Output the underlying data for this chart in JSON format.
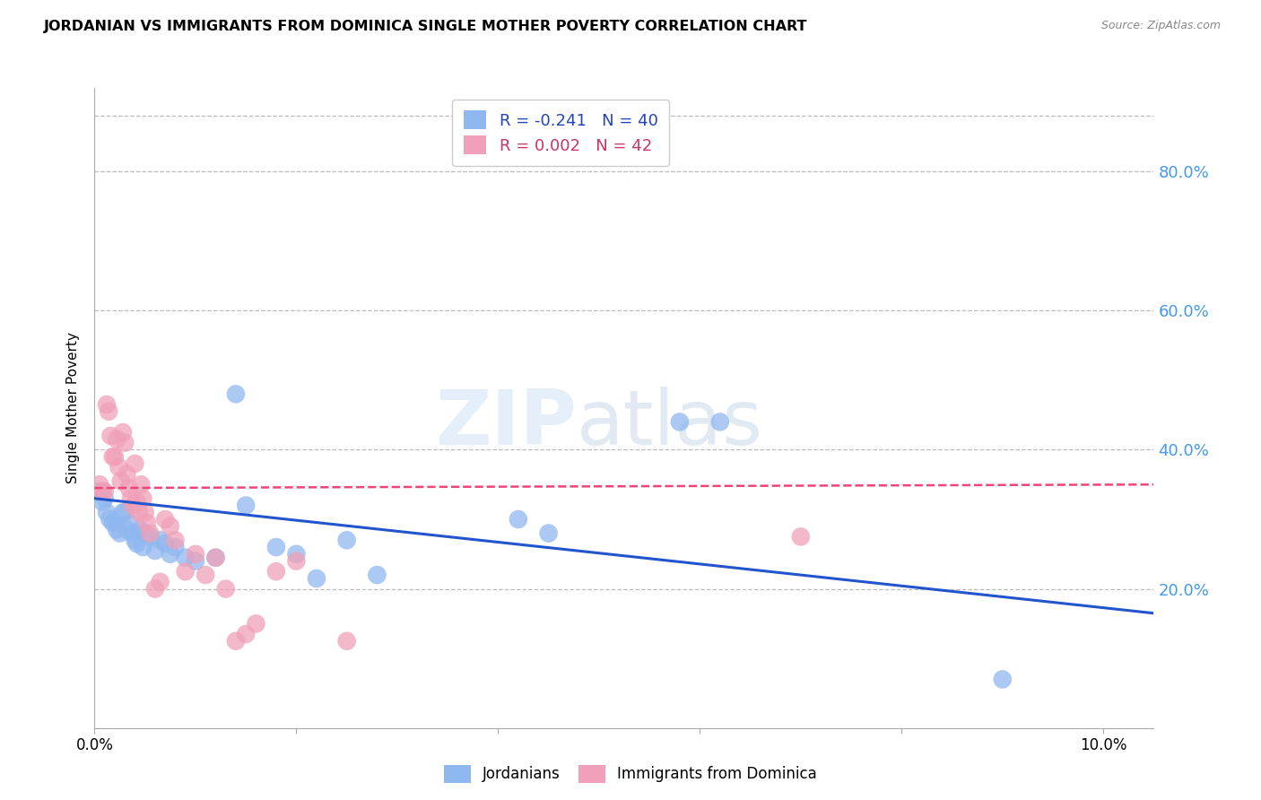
{
  "title": "JORDANIAN VS IMMIGRANTS FROM DOMINICA SINGLE MOTHER POVERTY CORRELATION CHART",
  "source": "Source: ZipAtlas.com",
  "ylabel": "Single Mother Poverty",
  "xlim": [
    0.0,
    0.105
  ],
  "ylim": [
    0.0,
    0.92
  ],
  "background_color": "#ffffff",
  "grid_color": "#cccccc",
  "blue_scatter_color": "#90b8f0",
  "pink_scatter_color": "#f0a0b8",
  "blue_line_color": "#2255cc",
  "pink_line_color": "#ee4477",
  "right_tick_color": "#4499ee",
  "tick_fontsize": 12,
  "legend_R1": "R = -0.241",
  "legend_N1": "N = 40",
  "legend_R2": "R = 0.002",
  "legend_N2": "N = 42",
  "jordanians_x": [
    0.0005,
    0.0008,
    0.001,
    0.0012,
    0.0015,
    0.0018,
    0.002,
    0.0022,
    0.0025,
    0.0028,
    0.003,
    0.0032,
    0.0035,
    0.0038,
    0.004,
    0.0042,
    0.0045,
    0.0048,
    0.005,
    0.0055,
    0.006,
    0.0065,
    0.007,
    0.0075,
    0.008,
    0.009,
    0.01,
    0.012,
    0.014,
    0.015,
    0.018,
    0.02,
    0.022,
    0.025,
    0.028,
    0.042,
    0.045,
    0.058,
    0.062,
    0.09
  ],
  "jordanians_y": [
    0.34,
    0.325,
    0.33,
    0.31,
    0.3,
    0.295,
    0.295,
    0.285,
    0.28,
    0.31,
    0.31,
    0.285,
    0.295,
    0.28,
    0.27,
    0.265,
    0.285,
    0.26,
    0.28,
    0.275,
    0.255,
    0.27,
    0.265,
    0.25,
    0.26,
    0.245,
    0.24,
    0.245,
    0.48,
    0.32,
    0.26,
    0.25,
    0.215,
    0.27,
    0.22,
    0.3,
    0.28,
    0.44,
    0.44,
    0.07
  ],
  "dominica_x": [
    0.0005,
    0.0008,
    0.001,
    0.0012,
    0.0014,
    0.0016,
    0.0018,
    0.002,
    0.0022,
    0.0024,
    0.0026,
    0.0028,
    0.003,
    0.0032,
    0.0034,
    0.0036,
    0.0038,
    0.004,
    0.0042,
    0.0044,
    0.0046,
    0.0048,
    0.005,
    0.0052,
    0.0055,
    0.006,
    0.0065,
    0.007,
    0.0075,
    0.008,
    0.009,
    0.01,
    0.011,
    0.012,
    0.013,
    0.014,
    0.015,
    0.016,
    0.018,
    0.02,
    0.025,
    0.07
  ],
  "dominica_y": [
    0.35,
    0.34,
    0.34,
    0.465,
    0.455,
    0.42,
    0.39,
    0.39,
    0.415,
    0.375,
    0.355,
    0.425,
    0.41,
    0.365,
    0.345,
    0.33,
    0.32,
    0.38,
    0.325,
    0.31,
    0.35,
    0.33,
    0.31,
    0.295,
    0.28,
    0.2,
    0.21,
    0.3,
    0.29,
    0.27,
    0.225,
    0.25,
    0.22,
    0.245,
    0.2,
    0.125,
    0.135,
    0.15,
    0.225,
    0.24,
    0.125,
    0.275
  ]
}
